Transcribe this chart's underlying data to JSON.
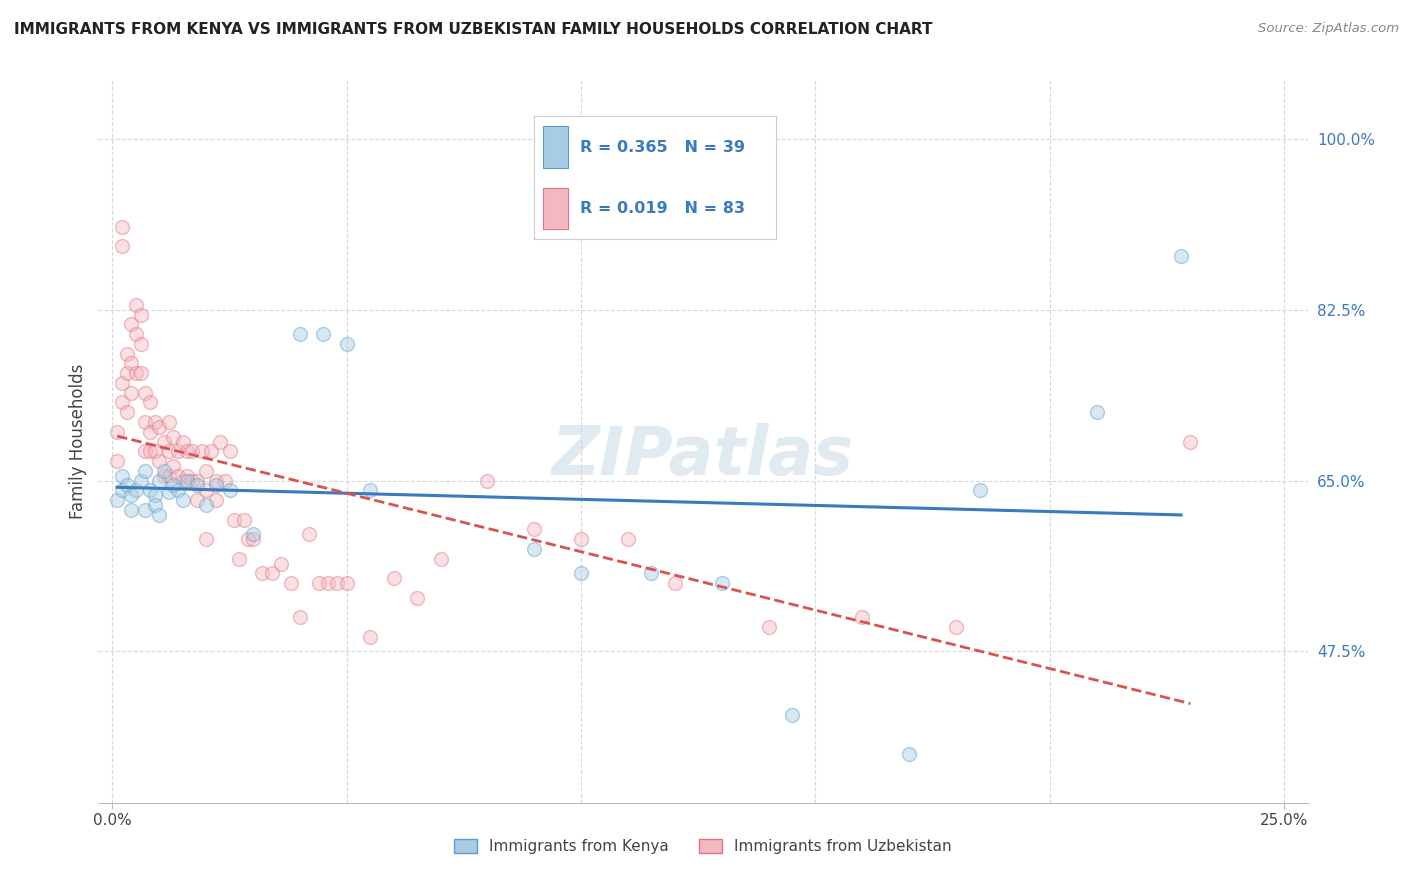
{
  "title": "IMMIGRANTS FROM KENYA VS IMMIGRANTS FROM UZBEKISTAN FAMILY HOUSEHOLDS CORRELATION CHART",
  "source": "Source: ZipAtlas.com",
  "ylabel": "Family Households",
  "yticks": [
    "47.5%",
    "65.0%",
    "82.5%",
    "100.0%"
  ],
  "ytick_vals": [
    0.475,
    0.65,
    0.825,
    1.0
  ],
  "xtick_labels": [
    "0.0%",
    "25.0%"
  ],
  "xtick_vals": [
    0.0,
    0.25
  ],
  "xlim": [
    -0.003,
    0.255
  ],
  "ylim": [
    0.32,
    1.06
  ],
  "kenya_color": "#a8cce4",
  "kenya_edge_color": "#5b9ec9",
  "uzbekistan_color": "#f4b8c1",
  "uzbekistan_edge_color": "#e0737e",
  "kenya_R": 0.365,
  "kenya_N": 39,
  "uzbekistan_R": 0.019,
  "uzbekistan_N": 83,
  "kenya_line_color": "#3a7abf",
  "uzbekistan_line_color": "#d9534f",
  "legend_text_color": "#3a7abf",
  "kenya_x": [
    0.001,
    0.002,
    0.002,
    0.003,
    0.004,
    0.004,
    0.005,
    0.006,
    0.007,
    0.007,
    0.008,
    0.009,
    0.009,
    0.01,
    0.01,
    0.011,
    0.012,
    0.013,
    0.014,
    0.015,
    0.016,
    0.018,
    0.02,
    0.022,
    0.025,
    0.03,
    0.04,
    0.045,
    0.05,
    0.055,
    0.09,
    0.1,
    0.115,
    0.13,
    0.145,
    0.17,
    0.185,
    0.21,
    0.228
  ],
  "kenya_y": [
    0.63,
    0.64,
    0.655,
    0.645,
    0.635,
    0.62,
    0.64,
    0.65,
    0.66,
    0.62,
    0.64,
    0.635,
    0.625,
    0.65,
    0.615,
    0.66,
    0.638,
    0.645,
    0.64,
    0.63,
    0.65,
    0.645,
    0.625,
    0.645,
    0.64,
    0.595,
    0.8,
    0.8,
    0.79,
    0.64,
    0.58,
    0.555,
    0.555,
    0.545,
    0.41,
    0.37,
    0.64,
    0.72,
    0.88
  ],
  "uzbekistan_x": [
    0.001,
    0.001,
    0.002,
    0.002,
    0.002,
    0.002,
    0.003,
    0.003,
    0.003,
    0.004,
    0.004,
    0.004,
    0.005,
    0.005,
    0.005,
    0.006,
    0.006,
    0.006,
    0.007,
    0.007,
    0.007,
    0.008,
    0.008,
    0.008,
    0.009,
    0.009,
    0.01,
    0.01,
    0.011,
    0.011,
    0.012,
    0.012,
    0.012,
    0.013,
    0.013,
    0.014,
    0.014,
    0.015,
    0.015,
    0.016,
    0.016,
    0.017,
    0.017,
    0.018,
    0.018,
    0.019,
    0.02,
    0.02,
    0.02,
    0.021,
    0.022,
    0.022,
    0.023,
    0.024,
    0.025,
    0.026,
    0.027,
    0.028,
    0.029,
    0.03,
    0.032,
    0.034,
    0.036,
    0.038,
    0.04,
    0.042,
    0.044,
    0.046,
    0.048,
    0.05,
    0.055,
    0.06,
    0.065,
    0.07,
    0.08,
    0.09,
    0.1,
    0.11,
    0.12,
    0.14,
    0.16,
    0.18,
    0.23
  ],
  "uzbekistan_y": [
    0.67,
    0.7,
    0.91,
    0.89,
    0.75,
    0.73,
    0.78,
    0.76,
    0.72,
    0.81,
    0.77,
    0.74,
    0.83,
    0.8,
    0.76,
    0.82,
    0.79,
    0.76,
    0.74,
    0.71,
    0.68,
    0.73,
    0.7,
    0.68,
    0.71,
    0.68,
    0.705,
    0.67,
    0.69,
    0.655,
    0.71,
    0.68,
    0.655,
    0.695,
    0.665,
    0.68,
    0.655,
    0.69,
    0.65,
    0.68,
    0.655,
    0.68,
    0.65,
    0.65,
    0.63,
    0.68,
    0.59,
    0.66,
    0.64,
    0.68,
    0.65,
    0.63,
    0.69,
    0.65,
    0.68,
    0.61,
    0.57,
    0.61,
    0.59,
    0.59,
    0.555,
    0.555,
    0.565,
    0.545,
    0.51,
    0.595,
    0.545,
    0.545,
    0.545,
    0.545,
    0.49,
    0.55,
    0.53,
    0.57,
    0.65,
    0.6,
    0.59,
    0.59,
    0.545,
    0.5,
    0.51,
    0.5,
    0.69
  ],
  "background_color": "#ffffff",
  "grid_color": "#d8d8d8",
  "marker_size": 100,
  "marker_alpha": 0.45,
  "xgrid_vals": [
    0.05,
    0.1,
    0.15,
    0.2,
    0.25
  ]
}
